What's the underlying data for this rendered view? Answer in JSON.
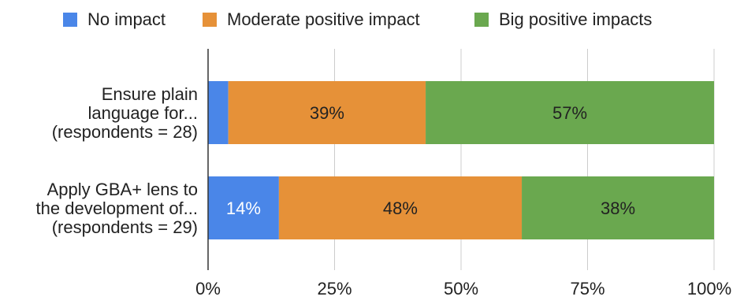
{
  "chart_data": {
    "type": "bar",
    "orientation": "horizontal",
    "stacked": true,
    "categories": [
      [
        "Ensure plain",
        "language for...",
        "(respondents = 28)"
      ],
      [
        "Apply GBA+ lens to",
        "the development of...",
        "(respondents = 29)"
      ]
    ],
    "series": [
      {
        "name": "No impact",
        "color": "#4a86e8",
        "values": [
          4,
          14
        ],
        "labels": [
          "",
          "14%"
        ],
        "label_color": "#ffffff"
      },
      {
        "name": "Moderate positive impact",
        "color": "#e69138",
        "values": [
          39,
          48
        ],
        "labels": [
          "39%",
          "48%"
        ],
        "label_color": "#222222"
      },
      {
        "name": "Big positive impacts",
        "color": "#6aa84f",
        "values": [
          57,
          38
        ],
        "labels": [
          "57%",
          "38%"
        ],
        "label_color": "#222222"
      }
    ],
    "xlim": [
      0,
      100
    ],
    "xticks": [
      0,
      25,
      50,
      75,
      100
    ],
    "xtick_labels": [
      "0%",
      "25%",
      "50%",
      "75%",
      "100%"
    ],
    "grid": true,
    "legend_position": "top",
    "title": "",
    "xlabel": "",
    "ylabel": ""
  }
}
